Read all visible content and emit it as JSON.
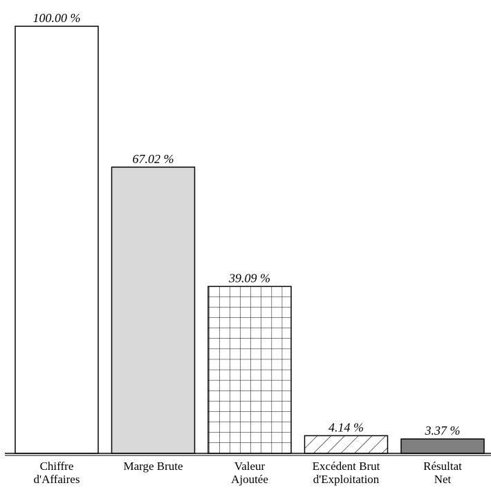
{
  "chart_data": {
    "type": "bar",
    "title": "",
    "xlabel": "",
    "ylabel": "",
    "ylim": [
      0,
      100
    ],
    "grid": false,
    "categories": [
      [
        "Chiffre",
        "d'Affaires"
      ],
      [
        "Marge Brute"
      ],
      [
        "Valeur",
        "Ajoutée"
      ],
      [
        "Excédent Brut",
        "d'Exploitation"
      ],
      [
        "Résultat",
        "Net"
      ]
    ],
    "values": [
      100.0,
      67.02,
      39.09,
      4.14,
      3.37
    ],
    "value_labels": [
      "100.00 %",
      "67.02 %",
      "39.09 %",
      "4.14 %",
      "3.37 %"
    ],
    "fills": [
      "white",
      "lightgray",
      "grid-hatch",
      "diagonal-hatch",
      "darkgray"
    ]
  },
  "colors": {
    "lightgray": "#d9d9d9",
    "darkgray": "#808080",
    "stroke": "#000000"
  }
}
